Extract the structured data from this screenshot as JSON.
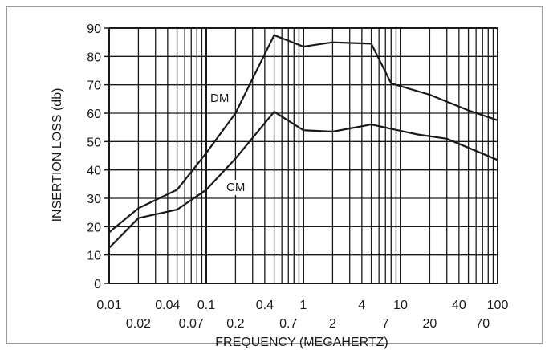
{
  "chart_data": {
    "type": "line",
    "title": "",
    "xlabel": "FREQUENCY (MEGAHERTZ)",
    "ylabel": "INSERTION LOSS (db)",
    "xscale": "log",
    "xlim": [
      0.01,
      100
    ],
    "ylim": [
      0,
      90
    ],
    "grid": true,
    "x_ticks_row1": [
      "0.01",
      "0.04",
      "0.1",
      "0.4",
      "1",
      "4",
      "10",
      "40",
      "100"
    ],
    "x_ticks_row2": [
      "0.02",
      "0.07",
      "0.2",
      "0.7",
      "2",
      "7",
      "20",
      "70"
    ],
    "y_ticks": [
      "0",
      "10",
      "20",
      "30",
      "40",
      "50",
      "60",
      "70",
      "80",
      "90"
    ],
    "series": [
      {
        "name": "DM",
        "x": [
          0.01,
          0.02,
          0.05,
          0.1,
          0.2,
          0.5,
          1,
          2,
          5,
          8,
          20,
          50,
          100
        ],
        "y": [
          18,
          26.5,
          33,
          46,
          60,
          87.5,
          83.5,
          85,
          84.5,
          70.5,
          66.5,
          61,
          57.5
        ]
      },
      {
        "name": "CM",
        "x": [
          0.01,
          0.02,
          0.05,
          0.1,
          0.2,
          0.5,
          1,
          2,
          5,
          8,
          15,
          30,
          100
        ],
        "y": [
          12.5,
          23,
          26,
          33,
          44,
          60.5,
          54,
          53.5,
          56,
          54.5,
          52.5,
          51,
          43.5
        ]
      }
    ]
  }
}
